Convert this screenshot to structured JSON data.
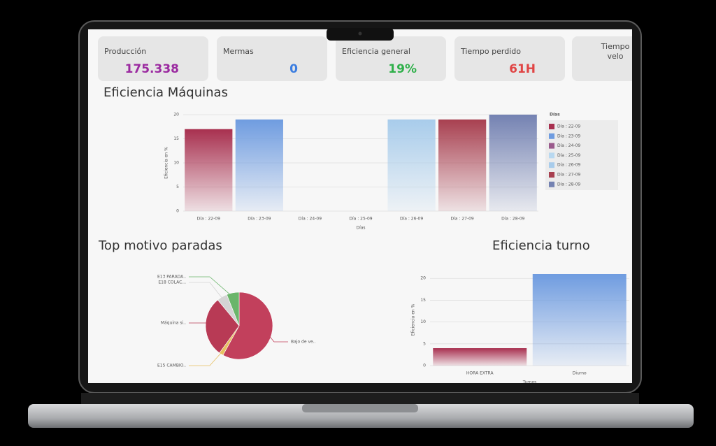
{
  "kpis": [
    {
      "label": "Producción",
      "value": "175.338",
      "color": "#9b2aa0"
    },
    {
      "label": "Mermas",
      "value": "0",
      "color": "#3b7de0"
    },
    {
      "label": "Eficiencia general",
      "value": "19%",
      "color": "#2fb04a"
    },
    {
      "label": "Tiempo perdido",
      "value": "61H",
      "color": "#e04545"
    },
    {
      "label_lines": [
        "Tiempo",
        "velo"
      ]
    }
  ],
  "chart_data": [
    {
      "type": "bar",
      "title": "Eficiencia Máquinas",
      "categories": [
        "Día : 22-09",
        "Día : 23-09",
        "Día : 24-09",
        "Día : 25-09",
        "Día : 26-09",
        "Día : 27-09",
        "Día : 28-09"
      ],
      "values": [
        17,
        19,
        0,
        0,
        19,
        19,
        20
      ],
      "colors": [
        "#a8304f",
        "#6f9ce0",
        "#9a5a8c",
        "#b8d8f0",
        "#a8cceb",
        "#a84050",
        "#7482b2"
      ],
      "ylim": [
        0,
        20
      ],
      "yticks": [
        0,
        5,
        10,
        15,
        20
      ],
      "grid": true,
      "ylabel": "Eficiencia en %",
      "xlabel": "Días",
      "legend_title": "Días",
      "legend": "right"
    },
    {
      "type": "pie",
      "title": "Top motivo paradas",
      "categories": [
        "Bajo de ve..",
        "E15 CAMBIO..",
        "Máquina si..",
        "E18 COLAC...",
        "E13 PARADA.."
      ],
      "values": [
        58,
        2,
        29,
        5,
        6
      ],
      "colors": [
        "#c2405c",
        "#e8c060",
        "#b83a55",
        "#d4d4d4",
        "#6ab56a"
      ]
    },
    {
      "type": "bar",
      "title": "Eficiencia turno",
      "categories": [
        "HORA EXTRA",
        "Diurno"
      ],
      "values": [
        4,
        21
      ],
      "colors": [
        "#a8304f",
        "#6f9ce0"
      ],
      "ylim": [
        0,
        21
      ],
      "yticks": [
        0,
        5,
        10,
        15,
        20
      ],
      "grid": true,
      "ylabel": "Eficiencia en %",
      "xlabel": "Turnos"
    }
  ]
}
